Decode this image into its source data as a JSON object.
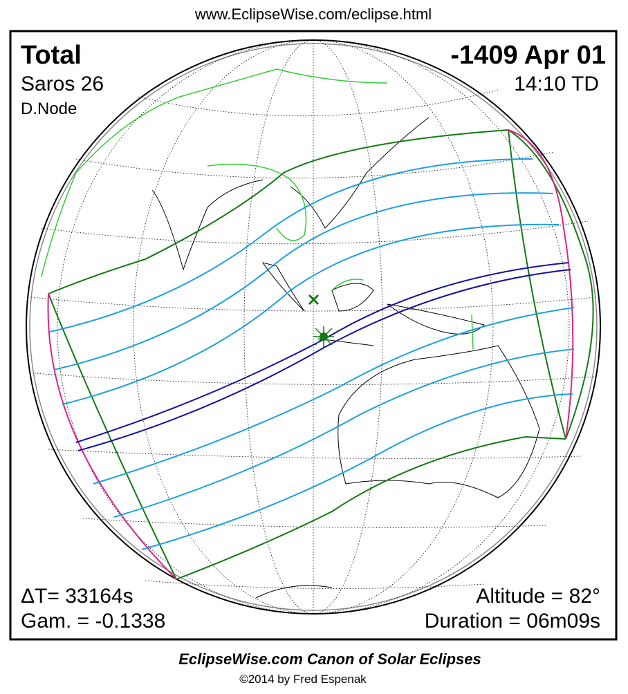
{
  "header": {
    "url": "www.EclipseWise.com/eclipse.html"
  },
  "panel": {
    "top_left": {
      "type": "Total",
      "saros": "Saros  26",
      "node": "D.Node"
    },
    "top_right": {
      "date": "-1409 Apr 01",
      "time": "14:10 TD"
    },
    "bottom_left": {
      "delta_t": "ΔT=  33164s",
      "gamma": "Gam. = -0.1338"
    },
    "bottom_right": {
      "altitude": "Altitude = 82°",
      "duration": "Duration = 06m09s"
    }
  },
  "footer": {
    "title": "EclipseWise.com Canon of Solar Eclipses",
    "credit": "©2014 by Fred Espenak"
  }
}
